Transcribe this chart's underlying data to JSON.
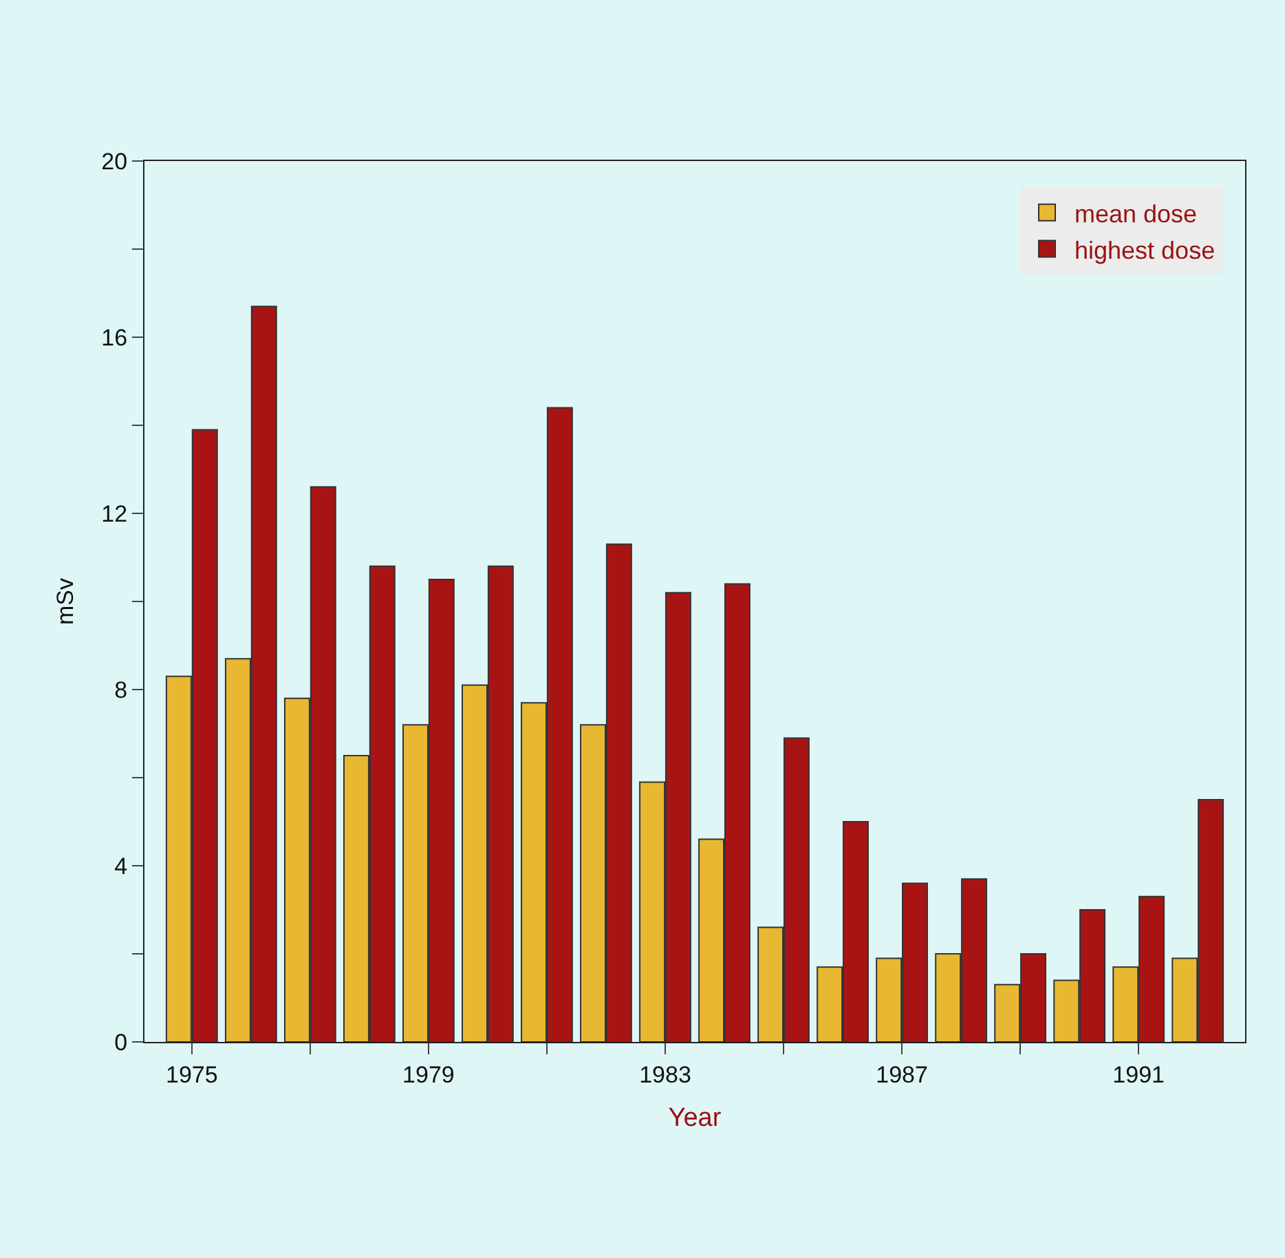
{
  "chart_data": {
    "type": "bar",
    "xlabel": "Year",
    "ylabel": "mSv",
    "x": [
      1975,
      1976,
      1977,
      1978,
      1979,
      1980,
      1981,
      1982,
      1983,
      1984,
      1985,
      1986,
      1987,
      1988,
      1989,
      1990,
      1991,
      1992
    ],
    "series": [
      {
        "name": "mean dose",
        "color": "#e8b832",
        "values": [
          8.3,
          8.7,
          7.8,
          6.5,
          7.2,
          8.1,
          7.7,
          7.2,
          5.9,
          4.6,
          2.6,
          1.7,
          1.9,
          2.0,
          1.3,
          1.4,
          1.7,
          1.9
        ]
      },
      {
        "name": "highest dose",
        "color": "#a81414",
        "values": [
          13.9,
          16.7,
          12.6,
          10.8,
          10.5,
          10.8,
          14.4,
          11.3,
          10.2,
          10.4,
          6.9,
          5.0,
          3.6,
          3.7,
          2.0,
          3.0,
          3.3,
          5.5
        ]
      }
    ],
    "xlim": [
      1974.2,
      1992.8
    ],
    "xticks": [
      1975,
      {
        "value": 1977,
        "label": null
      },
      1979,
      {
        "value": 1981,
        "label": null
      },
      1983,
      {
        "value": 1985,
        "label": null
      },
      1987,
      {
        "value": 1989,
        "label": null
      },
      1991
    ],
    "ylim": [
      0,
      20
    ],
    "yticks": [
      0,
      {
        "value": 2,
        "label": null
      },
      4,
      {
        "value": 6,
        "label": null
      },
      8,
      {
        "value": 10,
        "label": null
      },
      12,
      {
        "value": 14,
        "label": null
      },
      16,
      {
        "value": 18,
        "label": null
      },
      20
    ],
    "grid": false,
    "legend": "top right"
  }
}
